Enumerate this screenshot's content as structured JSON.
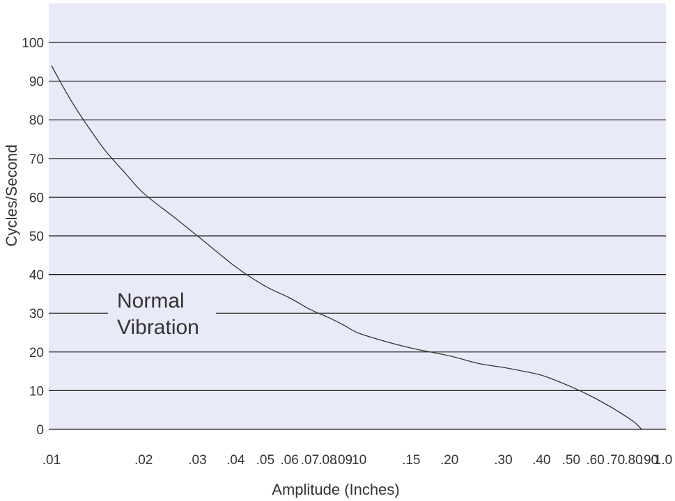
{
  "chart_data": {
    "type": "line",
    "title": "",
    "xlabel": "Amplitude (Inches)",
    "ylabel": "Cycles/Second",
    "ylim": [
      0,
      100
    ],
    "xlim": [
      0.01,
      1.0
    ],
    "x_scale": "log",
    "grid": "horizontal",
    "x_tick_labels": [
      ".01",
      ".02",
      ".03",
      ".04",
      ".05",
      ".06",
      ".07",
      ".08",
      ".09",
      ".10",
      ".15",
      ".20",
      ".30",
      ".40",
      ".50",
      ".60",
      ".70",
      ".80",
      ".90",
      "1.0"
    ],
    "x_tick_values": [
      0.01,
      0.02,
      0.03,
      0.04,
      0.05,
      0.06,
      0.07,
      0.08,
      0.09,
      0.1,
      0.15,
      0.2,
      0.3,
      0.4,
      0.5,
      0.6,
      0.7,
      0.8,
      0.9,
      1.0
    ],
    "y_tick_labels": [
      "0",
      "10",
      "20",
      "30",
      "40",
      "50",
      "60",
      "70",
      "80",
      "90",
      "100"
    ],
    "y_tick_values": [
      0,
      10,
      20,
      30,
      40,
      50,
      60,
      70,
      80,
      90,
      100
    ],
    "series": [
      {
        "x": [
          0.01,
          0.011,
          0.012,
          0.0135,
          0.015,
          0.0175,
          0.02,
          0.025,
          0.03,
          0.04,
          0.05,
          0.06,
          0.07,
          0.08,
          0.09,
          0.1,
          0.12,
          0.15,
          0.2,
          0.25,
          0.3,
          0.35,
          0.4,
          0.45,
          0.5,
          0.55,
          0.6,
          0.7,
          0.8,
          0.85
        ],
        "y": [
          94,
          88,
          83,
          77,
          72,
          66,
          61,
          55,
          50,
          42,
          37,
          34,
          31,
          29,
          27,
          25,
          23,
          21,
          19,
          17,
          16,
          15,
          14,
          12.5,
          11,
          9.5,
          8,
          5,
          2,
          0
        ]
      }
    ],
    "annotations": [
      "Normal",
      "Vibration"
    ],
    "colors": {
      "plot_background": "#e9eaf7",
      "line": "#333333",
      "grid": "#1a1a1a"
    }
  }
}
